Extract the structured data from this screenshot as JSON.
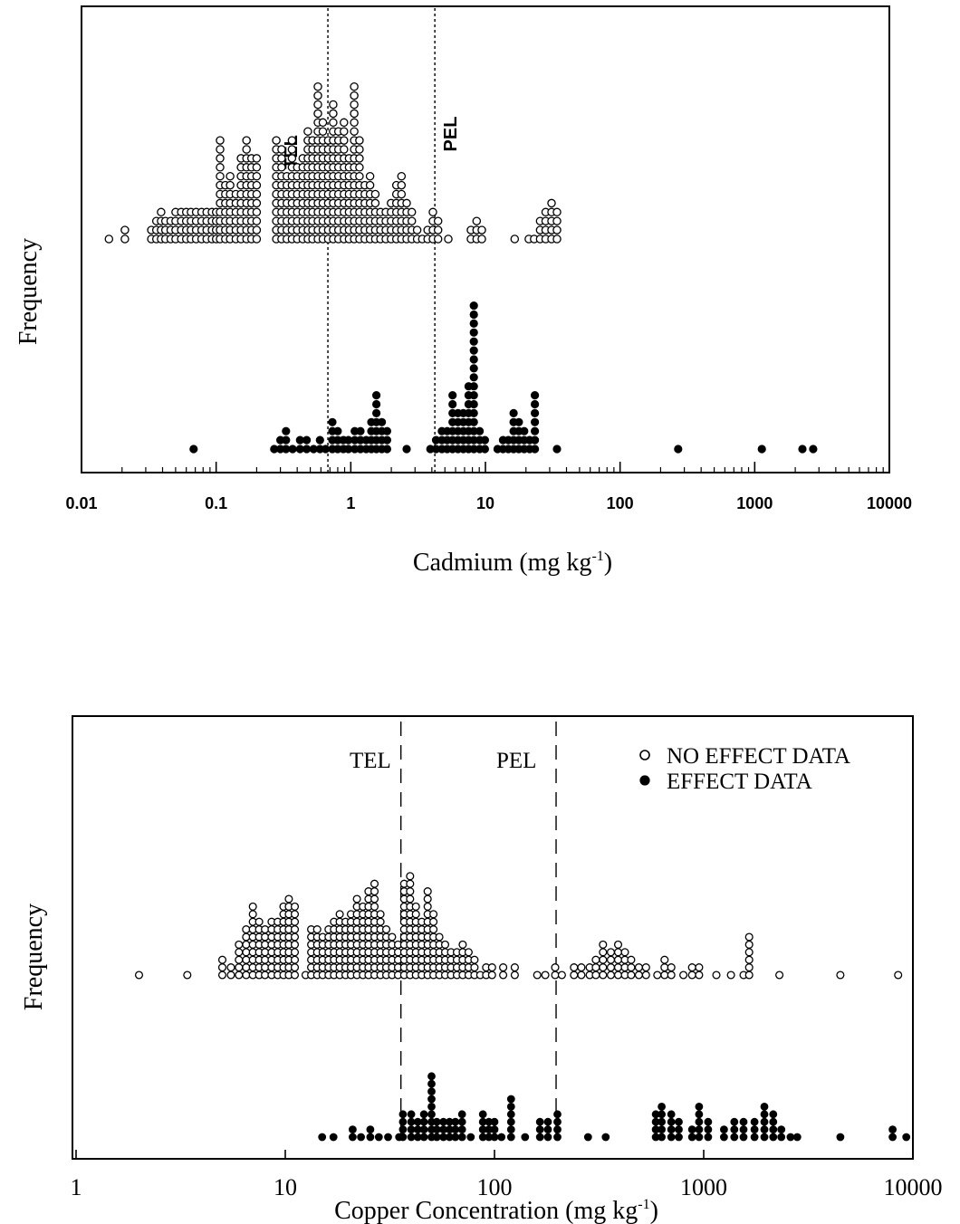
{
  "colors": {
    "ink": "#000000",
    "paper": "#ffffff"
  },
  "marker_legend": {
    "open_circle": "no effect",
    "filled_circle": "effect"
  },
  "chart_data": [
    {
      "type": "scatter",
      "subtype": "dot-frequency-plot",
      "title": "",
      "xlabel": "Cadmium (mg kg",
      "xlabel_sup": "-1",
      "xlabel_close": ")",
      "ylabel": "Frequency",
      "xscale": "log",
      "xlim": [
        0.01,
        10000
      ],
      "x_tick_labels": [
        "0.01",
        "0.1",
        "1",
        "10",
        "100",
        "1000",
        "10000"
      ],
      "grid": false,
      "guidelines": [
        {
          "label": "TEL",
          "x": 0.676
        },
        {
          "label": "PEL",
          "x": 4.21
        }
      ],
      "series": [
        {
          "marker": "open",
          "columns": [
            [
              0.016,
              1
            ],
            [
              0.021,
              2
            ],
            [
              0.033,
              2
            ],
            [
              0.036,
              3
            ],
            [
              0.039,
              4
            ],
            [
              0.042,
              3
            ],
            [
              0.046,
              3
            ],
            [
              0.05,
              4
            ],
            [
              0.055,
              4
            ],
            [
              0.06,
              4
            ],
            [
              0.065,
              4
            ],
            [
              0.071,
              4
            ],
            [
              0.078,
              4
            ],
            [
              0.085,
              4
            ],
            [
              0.093,
              4
            ],
            [
              0.1,
              4
            ],
            [
              0.107,
              12
            ],
            [
              0.117,
              7
            ],
            [
              0.127,
              8
            ],
            [
              0.14,
              6
            ],
            [
              0.153,
              10
            ],
            [
              0.168,
              12
            ],
            [
              0.183,
              10
            ],
            [
              0.2,
              10
            ],
            [
              0.28,
              12
            ],
            [
              0.306,
              11
            ],
            [
              0.335,
              8
            ],
            [
              0.366,
              12
            ],
            [
              0.4,
              9
            ],
            [
              0.44,
              10
            ],
            [
              0.48,
              13
            ],
            [
              0.52,
              12
            ],
            [
              0.57,
              18
            ],
            [
              0.62,
              14
            ],
            [
              0.68,
              12
            ],
            [
              0.74,
              16
            ],
            [
              0.81,
              13
            ],
            [
              0.89,
              14
            ],
            [
              0.97,
              10
            ],
            [
              1.06,
              18
            ],
            [
              1.16,
              12
            ],
            [
              1.27,
              7
            ],
            [
              1.39,
              8
            ],
            [
              1.52,
              6
            ],
            [
              1.66,
              4
            ],
            [
              1.82,
              4
            ],
            [
              1.99,
              5
            ],
            [
              2.18,
              7
            ],
            [
              2.38,
              8
            ],
            [
              2.6,
              5
            ],
            [
              2.84,
              4
            ],
            [
              3.11,
              2
            ],
            [
              3.4,
              1
            ],
            [
              3.72,
              2
            ],
            [
              4.07,
              4
            ],
            [
              4.45,
              3
            ],
            [
              5.3,
              1
            ],
            [
              7.8,
              2
            ],
            [
              8.6,
              3
            ],
            [
              9.4,
              2
            ],
            [
              16.5,
              1
            ],
            [
              21,
              1
            ],
            [
              23,
              1
            ],
            [
              25.5,
              3
            ],
            [
              28,
              4
            ],
            [
              31,
              5
            ],
            [
              34,
              4
            ]
          ]
        },
        {
          "marker": "filled",
          "columns": [
            [
              0.068,
              1
            ],
            [
              0.27,
              1
            ],
            [
              0.3,
              2
            ],
            [
              0.33,
              3
            ],
            [
              0.37,
              1
            ],
            [
              0.42,
              2
            ],
            [
              0.47,
              2
            ],
            [
              0.53,
              1
            ],
            [
              0.59,
              2
            ],
            [
              0.65,
              1
            ],
            [
              0.73,
              4
            ],
            [
              0.8,
              3
            ],
            [
              0.88,
              2
            ],
            [
              0.96,
              2
            ],
            [
              1.07,
              3
            ],
            [
              1.18,
              3
            ],
            [
              1.3,
              2
            ],
            [
              1.42,
              4
            ],
            [
              1.55,
              7
            ],
            [
              1.7,
              4
            ],
            [
              1.86,
              3
            ],
            [
              2.6,
              1
            ],
            [
              3.9,
              1
            ],
            [
              4.3,
              2
            ],
            [
              4.75,
              3
            ],
            [
              5.2,
              3
            ],
            [
              5.7,
              7
            ],
            [
              6.25,
              5
            ],
            [
              6.85,
              5
            ],
            [
              7.5,
              8
            ],
            [
              8.2,
              17
            ],
            [
              9.05,
              3
            ],
            [
              9.9,
              2
            ],
            [
              12.3,
              1
            ],
            [
              13.5,
              2
            ],
            [
              14.8,
              2
            ],
            [
              16.2,
              5
            ],
            [
              17.7,
              4
            ],
            [
              19.4,
              3
            ],
            [
              21.3,
              2
            ],
            [
              23.3,
              7
            ],
            [
              34,
              1
            ],
            [
              270,
              1
            ],
            [
              1130,
              1
            ],
            [
              2260,
              1
            ],
            [
              2720,
              1
            ]
          ]
        }
      ]
    },
    {
      "type": "scatter",
      "subtype": "dot-frequency-plot",
      "title": "",
      "xlabel": "Copper Concentration (mg kg",
      "xlabel_sup": "-1",
      "xlabel_close": ")",
      "ylabel": "Frequency",
      "xscale": "log",
      "xlim": [
        1,
        10000
      ],
      "x_tick_labels": [
        "1",
        "10",
        "100",
        "1000",
        "10000"
      ],
      "grid": false,
      "legend": {
        "position": "top-right",
        "entries": [
          {
            "marker": "open",
            "label": "NO EFFECT DATA"
          },
          {
            "marker": "filled",
            "label": "EFFECT DATA"
          }
        ]
      },
      "guidelines": [
        {
          "label": "TEL",
          "x": 35.7
        },
        {
          "label": "PEL",
          "x": 197
        }
      ],
      "series": [
        {
          "marker": "open",
          "columns": [
            [
              2,
              1
            ],
            [
              3.4,
              1
            ],
            [
              5,
              3
            ],
            [
              5.5,
              2
            ],
            [
              6,
              5
            ],
            [
              6.5,
              7
            ],
            [
              7,
              10
            ],
            [
              7.5,
              8
            ],
            [
              8,
              7
            ],
            [
              8.6,
              8
            ],
            [
              9.2,
              8
            ],
            [
              9.8,
              10
            ],
            [
              10.4,
              11
            ],
            [
              11.1,
              10
            ],
            [
              12.5,
              1
            ],
            [
              13.3,
              7
            ],
            [
              14.2,
              7
            ],
            [
              15.1,
              6
            ],
            [
              16.1,
              7
            ],
            [
              17.1,
              8
            ],
            [
              18.2,
              9
            ],
            [
              19.4,
              8
            ],
            [
              20.6,
              9
            ],
            [
              22,
              11
            ],
            [
              23.5,
              10
            ],
            [
              25,
              12
            ],
            [
              26.7,
              13
            ],
            [
              28.5,
              9
            ],
            [
              30.4,
              7
            ],
            [
              32.4,
              6
            ],
            [
              34.6,
              5
            ],
            [
              37,
              13
            ],
            [
              39.5,
              14
            ],
            [
              42.1,
              10
            ],
            [
              44.9,
              8
            ],
            [
              47.9,
              12
            ],
            [
              51.1,
              9
            ],
            [
              54.5,
              6
            ],
            [
              58.1,
              5
            ],
            [
              62,
              4
            ],
            [
              66.1,
              4
            ],
            [
              70.5,
              5
            ],
            [
              75.2,
              4
            ],
            [
              80.2,
              3
            ],
            [
              85.5,
              1
            ],
            [
              91.2,
              2
            ],
            [
              97.3,
              2
            ],
            [
              110,
              2
            ],
            [
              125,
              2
            ],
            [
              160,
              1
            ],
            [
              175,
              1
            ],
            [
              195,
              2
            ],
            [
              210,
              1
            ],
            [
              240,
              2
            ],
            [
              260,
              2
            ],
            [
              285,
              2
            ],
            [
              305,
              3
            ],
            [
              330,
              5
            ],
            [
              360,
              4
            ],
            [
              390,
              5
            ],
            [
              420,
              4
            ],
            [
              450,
              3
            ],
            [
              490,
              2
            ],
            [
              530,
              2
            ],
            [
              600,
              1
            ],
            [
              650,
              3
            ],
            [
              700,
              2
            ],
            [
              800,
              1
            ],
            [
              880,
              2
            ],
            [
              950,
              2
            ],
            [
              1150,
              1
            ],
            [
              1350,
              1
            ],
            [
              1550,
              1
            ],
            [
              1650,
              6
            ],
            [
              2300,
              1
            ],
            [
              4500,
              1
            ],
            [
              8500,
              1
            ]
          ]
        },
        {
          "marker": "filled",
          "columns": [
            [
              15,
              1
            ],
            [
              17,
              1
            ],
            [
              21,
              2
            ],
            [
              23,
              1
            ],
            [
              25.5,
              2
            ],
            [
              28,
              1
            ],
            [
              31,
              1
            ],
            [
              35,
              1
            ],
            [
              36.5,
              4
            ],
            [
              40,
              4
            ],
            [
              43,
              3
            ],
            [
              46,
              4
            ],
            [
              50,
              9
            ],
            [
              53,
              3
            ],
            [
              57,
              3
            ],
            [
              61,
              3
            ],
            [
              65,
              3
            ],
            [
              70,
              4
            ],
            [
              77,
              1
            ],
            [
              88,
              4
            ],
            [
              94,
              3
            ],
            [
              100,
              3
            ],
            [
              108,
              1
            ],
            [
              120,
              6
            ],
            [
              140,
              1
            ],
            [
              165,
              3
            ],
            [
              180,
              3
            ],
            [
              200,
              4
            ],
            [
              280,
              1
            ],
            [
              340,
              1
            ],
            [
              590,
              4
            ],
            [
              630,
              5
            ],
            [
              700,
              4
            ],
            [
              760,
              3
            ],
            [
              880,
              2
            ],
            [
              950,
              5
            ],
            [
              1050,
              3
            ],
            [
              1250,
              2
            ],
            [
              1400,
              3
            ],
            [
              1550,
              3
            ],
            [
              1750,
              3
            ],
            [
              1950,
              5
            ],
            [
              2150,
              4
            ],
            [
              2350,
              2
            ],
            [
              2600,
              1
            ],
            [
              2800,
              1
            ],
            [
              4500,
              1
            ],
            [
              8000,
              2
            ],
            [
              9300,
              1
            ]
          ]
        }
      ]
    }
  ]
}
